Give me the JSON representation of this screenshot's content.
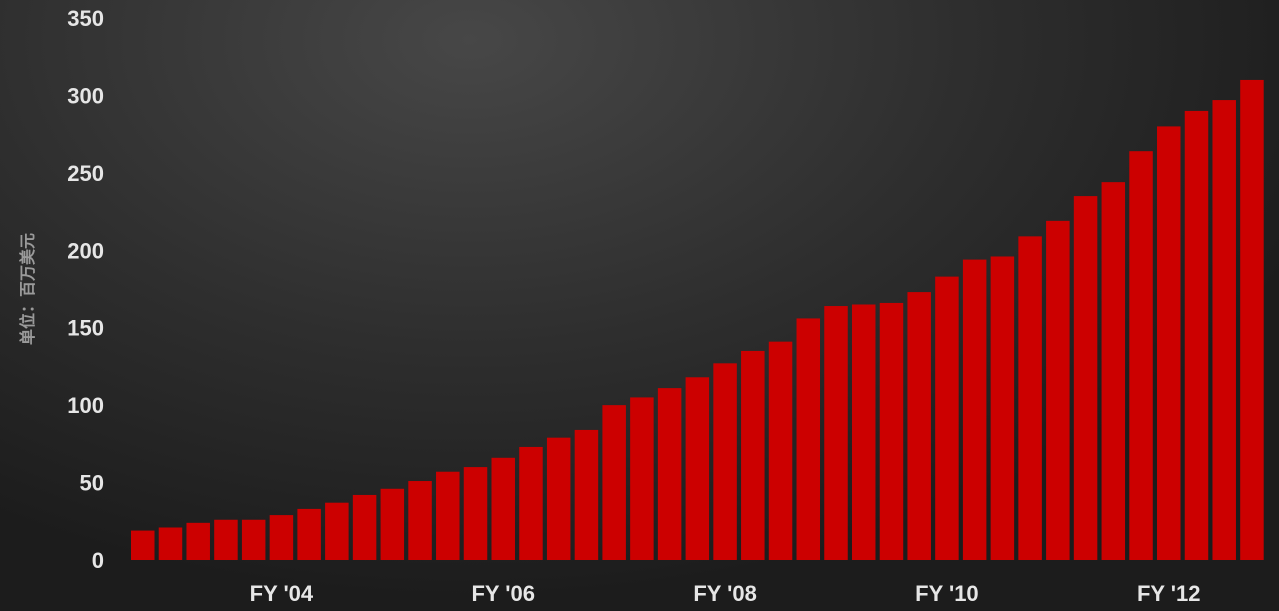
{
  "chart_data": {
    "type": "bar",
    "title": "",
    "xlabel": "",
    "ylabel": "单位：百万美元",
    "ylim": [
      0,
      350
    ],
    "y_ticks": [
      0,
      50,
      100,
      150,
      200,
      250,
      300,
      350
    ],
    "x_tick_labels": [
      {
        "label": "FY '04",
        "index": 5
      },
      {
        "label": "FY '06",
        "index": 13
      },
      {
        "label": "FY '08",
        "index": 21
      },
      {
        "label": "FY '10",
        "index": 29
      },
      {
        "label": "FY '12",
        "index": 37
      }
    ],
    "grid": false,
    "legend": "none",
    "colors": {
      "bar": "#cc0000"
    },
    "values": [
      19,
      21,
      24,
      26,
      26,
      29,
      33,
      37,
      42,
      46,
      51,
      57,
      60,
      66,
      73,
      79,
      84,
      100,
      105,
      111,
      118,
      127,
      135,
      141,
      156,
      164,
      165,
      166,
      173,
      183,
      194,
      196,
      209,
      219,
      235,
      244,
      264,
      280,
      290,
      297,
      310
    ]
  }
}
